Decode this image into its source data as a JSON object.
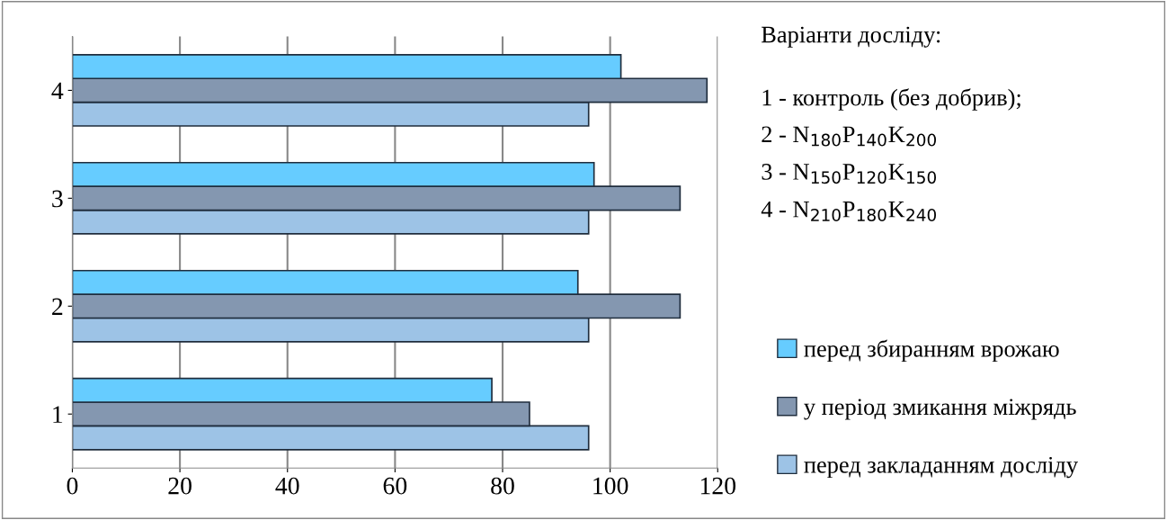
{
  "chart_data": {
    "type": "bar",
    "orientation": "horizontal",
    "categories": [
      "4",
      "3",
      "2",
      "1"
    ],
    "series": [
      {
        "name": "перед закладанням досліду",
        "color": "#9dc3e6",
        "values": [
          96,
          96,
          96,
          96
        ]
      },
      {
        "name": "у період змикання міжрядь",
        "color": "#8497b0",
        "values": [
          118,
          113,
          113,
          85
        ]
      },
      {
        "name": "перед збиранням врожаю",
        "color": "#66ccff",
        "values": [
          102,
          97,
          94,
          78
        ]
      }
    ],
    "xlim": [
      0,
      120
    ],
    "xticks": [
      0,
      20,
      40,
      60,
      80,
      100,
      120
    ],
    "grid": "x",
    "legend": "right",
    "annotations": [
      "Варіанти досліду:",
      "1 - контроль (без добрив);",
      "2 - N$_{180}$P$_{140}$K$_{200}$",
      "3 - N$_{150}$P$_{120}$K$_{150}$",
      "4 - N$_{210}$P$_{180}$K$_{240}$"
    ]
  }
}
